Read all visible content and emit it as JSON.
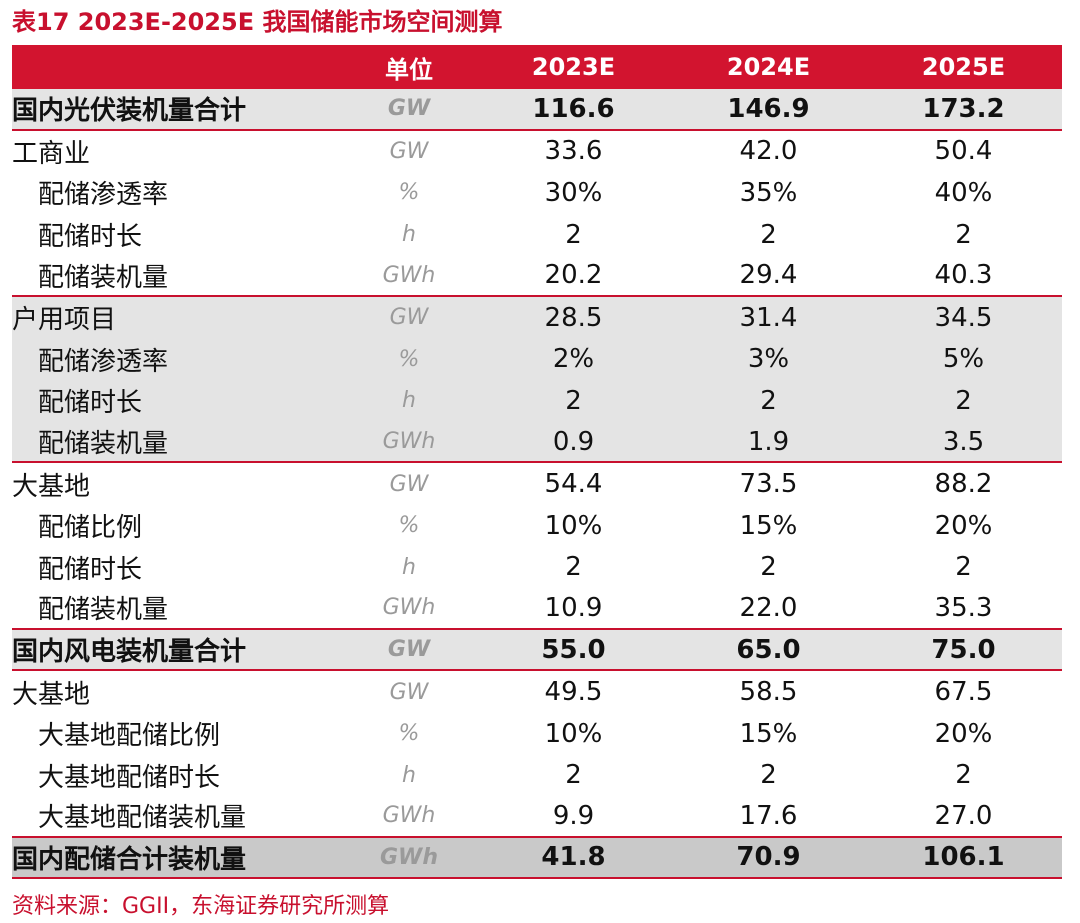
{
  "title": "表17  2023E-2025E 我国储能市场空间测算",
  "header": {
    "label": "",
    "unit": "单位",
    "years": [
      "2023E",
      "2024E",
      "2025E"
    ]
  },
  "rows": [
    {
      "label": "国内光伏装机量合计",
      "unit": "GW",
      "values": [
        "116.6",
        "146.9",
        "173.2"
      ]
    },
    {
      "label": "工商业",
      "unit": "GW",
      "values": [
        "33.6",
        "42.0",
        "50.4"
      ]
    },
    {
      "label": "配储渗透率",
      "unit": "%",
      "values": [
        "30%",
        "35%",
        "40%"
      ]
    },
    {
      "label": "配储时长",
      "unit": "h",
      "values": [
        "2",
        "2",
        "2"
      ]
    },
    {
      "label": "配储装机量",
      "unit": "GWh",
      "values": [
        "20.2",
        "29.4",
        "40.3"
      ]
    },
    {
      "label": "户用项目",
      "unit": "GW",
      "values": [
        "28.5",
        "31.4",
        "34.5"
      ]
    },
    {
      "label": "配储渗透率",
      "unit": "%",
      "values": [
        "2%",
        "3%",
        "5%"
      ]
    },
    {
      "label": "配储时长",
      "unit": "h",
      "values": [
        "2",
        "2",
        "2"
      ]
    },
    {
      "label": "配储装机量",
      "unit": "GWh",
      "values": [
        "0.9",
        "1.9",
        "3.5"
      ]
    },
    {
      "label": "大基地",
      "unit": "GW",
      "values": [
        "54.4",
        "73.5",
        "88.2"
      ]
    },
    {
      "label": "配储比例",
      "unit": "%",
      "values": [
        "10%",
        "15%",
        "20%"
      ]
    },
    {
      "label": "配储时长",
      "unit": "h",
      "values": [
        "2",
        "2",
        "2"
      ]
    },
    {
      "label": "配储装机量",
      "unit": "GWh",
      "values": [
        "10.9",
        "22.0",
        "35.3"
      ]
    },
    {
      "label": "国内风电装机量合计",
      "unit": "GW",
      "values": [
        "55.0",
        "65.0",
        "75.0"
      ]
    },
    {
      "label": "大基地",
      "unit": "GW",
      "values": [
        "49.5",
        "58.5",
        "67.5"
      ]
    },
    {
      "label": "大基地配储比例",
      "unit": "%",
      "values": [
        "10%",
        "15%",
        "20%"
      ]
    },
    {
      "label": "大基地配储时长",
      "unit": "h",
      "values": [
        "2",
        "2",
        "2"
      ]
    },
    {
      "label": "大基地配储装机量",
      "unit": "GWh",
      "values": [
        "9.9",
        "17.6",
        "27.0"
      ]
    },
    {
      "label": "国内配储合计装机量",
      "unit": "GWh",
      "values": [
        "41.8",
        "70.9",
        "106.1"
      ]
    }
  ],
  "source": "资料来源：GGII，东海证券研究所测算",
  "colors": {
    "accent": "#d2142f",
    "title": "#c8102e",
    "light_gray": "#e4e4e4",
    "dark_gray": "#c9c9c9"
  }
}
